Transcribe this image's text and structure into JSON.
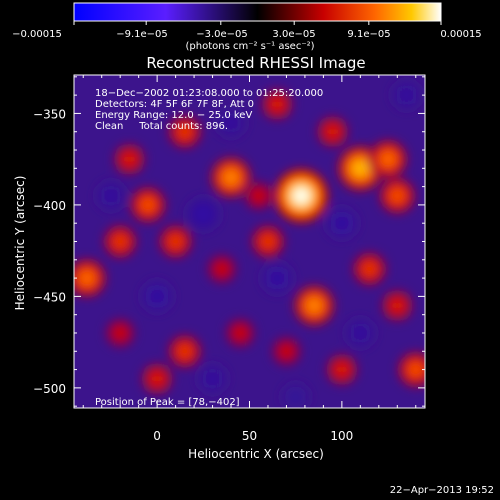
{
  "chart_data": {
    "type": "heatmap",
    "title": "Reconstructed RHESSI Image",
    "xlabel": "Heliocentric X (arcsec)",
    "ylabel": "Heliocentric Y (arcsec)",
    "xlim": [
      -45,
      145
    ],
    "ylim": [
      -511,
      -329
    ],
    "x_ticks": [
      0,
      50,
      100
    ],
    "y_ticks": [
      -350,
      -400,
      -450,
      -500
    ],
    "x_tick_labels": [
      "0",
      "50",
      "100"
    ],
    "y_tick_labels": [
      "−350",
      "−400",
      "−450",
      "−500"
    ],
    "colorbar": {
      "ticks": [
        -0.00015,
        -9.1e-05,
        -3e-05,
        3e-05,
        9.1e-05,
        0.00015
      ],
      "tick_labels": [
        "−0.00015",
        "−9.1e−05",
        "−3.0e−05",
        "3.0e−05",
        "9.1e−05",
        "0.00015"
      ],
      "units": "(photons cm⁻² s⁻¹ asec⁻²)",
      "range": [
        -0.00015,
        0.00015
      ]
    },
    "peak": {
      "x": 78,
      "y": -402
    },
    "sources": [
      {
        "x": 78,
        "y": -395,
        "intensity": 0.00015
      },
      {
        "x": 110,
        "y": -380,
        "intensity": 0.00011
      },
      {
        "x": 40,
        "y": -385,
        "intensity": 9e-05
      },
      {
        "x": 125,
        "y": -375,
        "intensity": 8e-05
      },
      {
        "x": 65,
        "y": -345,
        "intensity": 5e-05
      },
      {
        "x": 15,
        "y": -360,
        "intensity": 6e-05
      },
      {
        "x": -15,
        "y": -375,
        "intensity": 5e-05
      },
      {
        "x": -5,
        "y": -400,
        "intensity": 7e-05
      },
      {
        "x": -20,
        "y": -420,
        "intensity": 6e-05
      },
      {
        "x": -38,
        "y": -440,
        "intensity": 8e-05
      },
      {
        "x": 10,
        "y": -420,
        "intensity": 6e-05
      },
      {
        "x": 35,
        "y": -435,
        "intensity": 4e-05
      },
      {
        "x": 60,
        "y": -420,
        "intensity": 6e-05
      },
      {
        "x": 85,
        "y": -455,
        "intensity": 9e-05
      },
      {
        "x": 115,
        "y": -435,
        "intensity": 6e-05
      },
      {
        "x": 130,
        "y": -455,
        "intensity": 5e-05
      },
      {
        "x": 130,
        "y": -395,
        "intensity": 7e-05
      },
      {
        "x": 100,
        "y": -490,
        "intensity": 5e-05
      },
      {
        "x": 45,
        "y": -470,
        "intensity": 4e-05
      },
      {
        "x": 15,
        "y": -480,
        "intensity": 6e-05
      },
      {
        "x": -20,
        "y": -470,
        "intensity": 4e-05
      },
      {
        "x": 0,
        "y": -495,
        "intensity": 5e-05
      },
      {
        "x": 140,
        "y": -490,
        "intensity": 7e-05
      },
      {
        "x": 95,
        "y": -360,
        "intensity": 5e-05
      },
      {
        "x": 55,
        "y": -395,
        "intensity": 4e-05
      },
      {
        "x": 70,
        "y": -480,
        "intensity": 4e-05
      }
    ],
    "negative_regions": [
      {
        "x": 25,
        "y": -405,
        "intensity": -6e-05
      },
      {
        "x": 100,
        "y": -410,
        "intensity": -5e-05
      },
      {
        "x": 65,
        "y": -440,
        "intensity": -5e-05
      },
      {
        "x": -25,
        "y": -395,
        "intensity": -4e-05
      },
      {
        "x": 40,
        "y": -355,
        "intensity": -4e-05
      },
      {
        "x": 110,
        "y": -470,
        "intensity": -4e-05
      },
      {
        "x": 0,
        "y": -450,
        "intensity": -5e-05
      },
      {
        "x": 135,
        "y": -340,
        "intensity": -4e-05
      },
      {
        "x": 30,
        "y": -495,
        "intensity": -4e-05
      },
      {
        "x": 75,
        "y": -505,
        "intensity": -3e-05
      }
    ],
    "grid": false
  },
  "annotations": {
    "time_range": "18−Dec−2002 01:23:08.000 to 01:25:20.000",
    "detectors": "Detectors: 4F 5F 6F 7F 8F, Att 0",
    "energy_range": "Energy Range: 12.0 − 25.0 keV",
    "method": "Clean     Total counts: 896.",
    "peak_position": "Position of Peak = [78,−402]"
  },
  "footer": {
    "date": "22−Apr−2013 19:52"
  }
}
